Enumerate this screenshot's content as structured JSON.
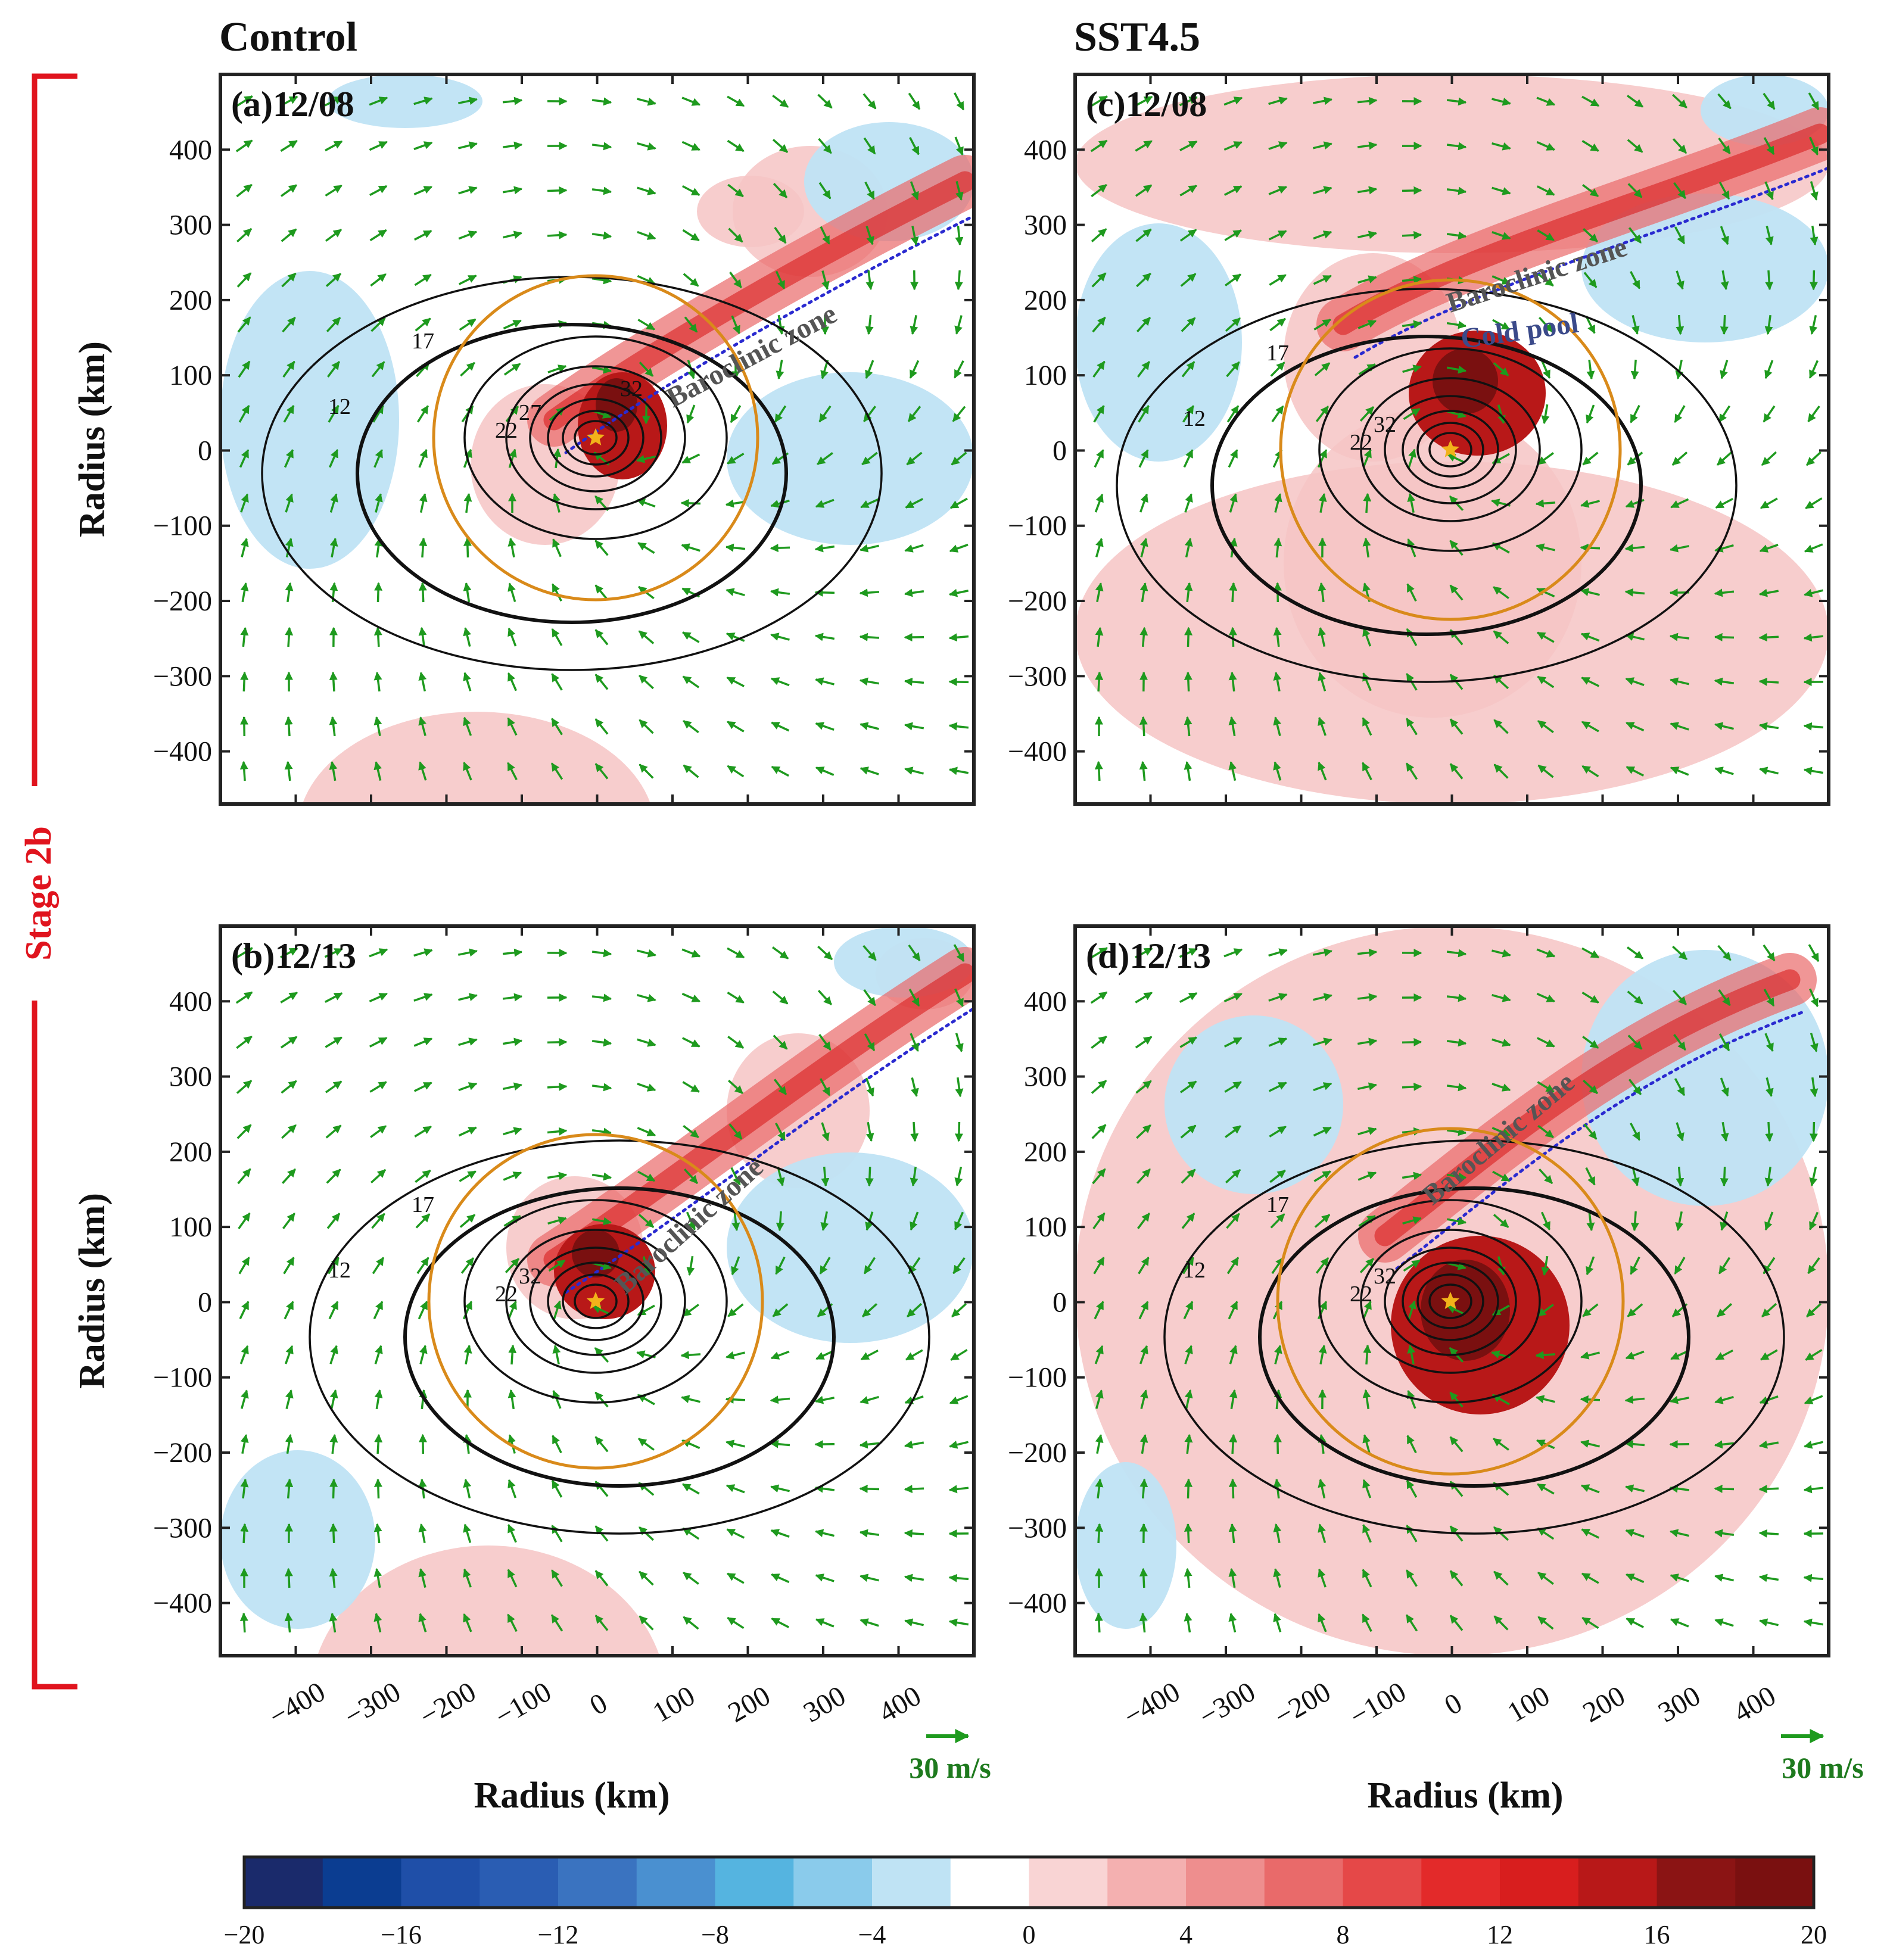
{
  "figure": {
    "column_titles": [
      "Control",
      "SST4.5"
    ],
    "stage_label": "Stage 2b",
    "x_axis_label": "Radius (km)",
    "y_axis_label": "Radius (km)",
    "reference_vector": "30 m/s",
    "colors": {
      "stage_bracket": "#e0141e",
      "wind_vector": "#1e9a1e",
      "circle": "#d98a1a",
      "dotted_contour": "#2a2ad0",
      "star": "#f2b21a"
    }
  },
  "chart_data": [
    {
      "type": "contour",
      "panel": "(a)12/08",
      "experiment": "Control",
      "xlim": [
        -500,
        500
      ],
      "ylim": [
        -470,
        500
      ],
      "xticks": [
        "−400",
        "−300",
        "−200",
        "−100",
        "0",
        "100",
        "200",
        "300",
        "400"
      ],
      "yticks": [
        "400",
        "300",
        "200",
        "100",
        "0",
        "−100",
        "−200",
        "−300",
        "−400"
      ],
      "contour_levels": [
        "12",
        "17",
        "22",
        "27",
        "32"
      ],
      "annotations": [
        "Baroclinic zone"
      ]
    },
    {
      "type": "contour",
      "panel": "(b)12/13",
      "experiment": "Control",
      "xlim": [
        -500,
        500
      ],
      "ylim": [
        -470,
        500
      ],
      "xticks": [
        "−400",
        "−300",
        "−200",
        "−100",
        "0",
        "100",
        "200",
        "300",
        "400"
      ],
      "yticks": [
        "400",
        "300",
        "200",
        "100",
        "0",
        "−100",
        "−200",
        "−300",
        "−400"
      ],
      "contour_levels": [
        "12",
        "17",
        "22",
        "32"
      ],
      "annotations": [
        "Baroclinic zone"
      ]
    },
    {
      "type": "contour",
      "panel": "(c)12/08",
      "experiment": "SST4.5",
      "xlim": [
        -500,
        500
      ],
      "ylim": [
        -470,
        500
      ],
      "xticks": [
        "−400",
        "−300",
        "−200",
        "−100",
        "0",
        "100",
        "200",
        "300",
        "400"
      ],
      "yticks": [
        "400",
        "300",
        "200",
        "100",
        "0",
        "−100",
        "−200",
        "−300",
        "−400"
      ],
      "contour_levels": [
        "12",
        "17",
        "22",
        "32"
      ],
      "annotations": [
        "Baroclinic zone",
        "Cold pool"
      ]
    },
    {
      "type": "contour",
      "panel": "(d)12/13",
      "experiment": "SST4.5",
      "xlim": [
        -500,
        500
      ],
      "ylim": [
        -470,
        500
      ],
      "xticks": [
        "−400",
        "−300",
        "−200",
        "−100",
        "0",
        "100",
        "200",
        "300",
        "400"
      ],
      "yticks": [
        "400",
        "300",
        "200",
        "100",
        "0",
        "−100",
        "−200",
        "−300",
        "−400"
      ],
      "contour_levels": [
        "12",
        "17",
        "22",
        "32"
      ],
      "annotations": [
        "Baroclinic zone"
      ]
    },
    {
      "type": "colorbar",
      "range": [
        -20,
        20
      ],
      "tick_labels": [
        "−20",
        "−16",
        "−12",
        "−8",
        "−4",
        "0",
        "4",
        "8",
        "12",
        "16",
        "20"
      ],
      "colors": [
        "#1a2a6b",
        "#0b3d91",
        "#1f4fa8",
        "#2a5db3",
        "#3a73c0",
        "#4a90d0",
        "#55b4e0",
        "#8acbeb",
        "#bfe3f4",
        "#ffffff",
        "#f9d4d4",
        "#f4b0b0",
        "#ee8e8e",
        "#e96a6a",
        "#e54848",
        "#e32a2a",
        "#d81e1e",
        "#b81818",
        "#8b1414",
        "#7a1010"
      ]
    }
  ]
}
